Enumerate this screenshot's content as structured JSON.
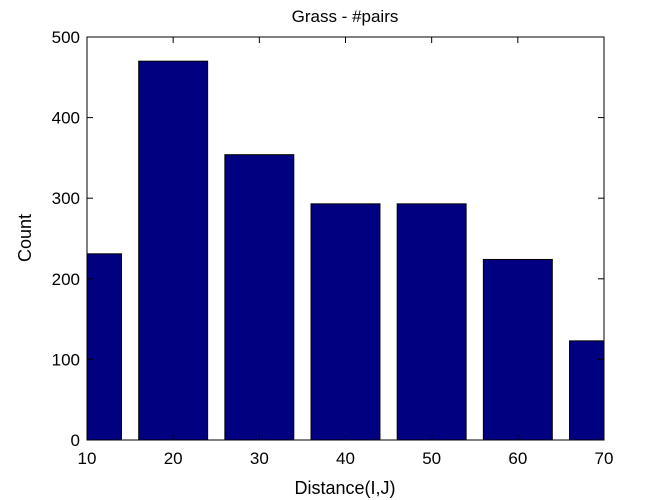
{
  "chart_data": {
    "type": "bar",
    "title": "Grass - #pairs",
    "xlabel": "Distance(I,J)",
    "ylabel": "Count",
    "x": [
      10,
      20,
      30,
      40,
      50,
      60,
      70
    ],
    "values": [
      231,
      470,
      354,
      293,
      293,
      224,
      123
    ],
    "xlim": [
      10,
      70
    ],
    "ylim": [
      0,
      500
    ],
    "xticks": [
      "10",
      "20",
      "30",
      "40",
      "50",
      "60",
      "70"
    ],
    "yticks": [
      "0",
      "100",
      "200",
      "300",
      "400",
      "500"
    ],
    "grid": false,
    "colors": {
      "bar": "#000080",
      "edge": "#000000"
    }
  }
}
